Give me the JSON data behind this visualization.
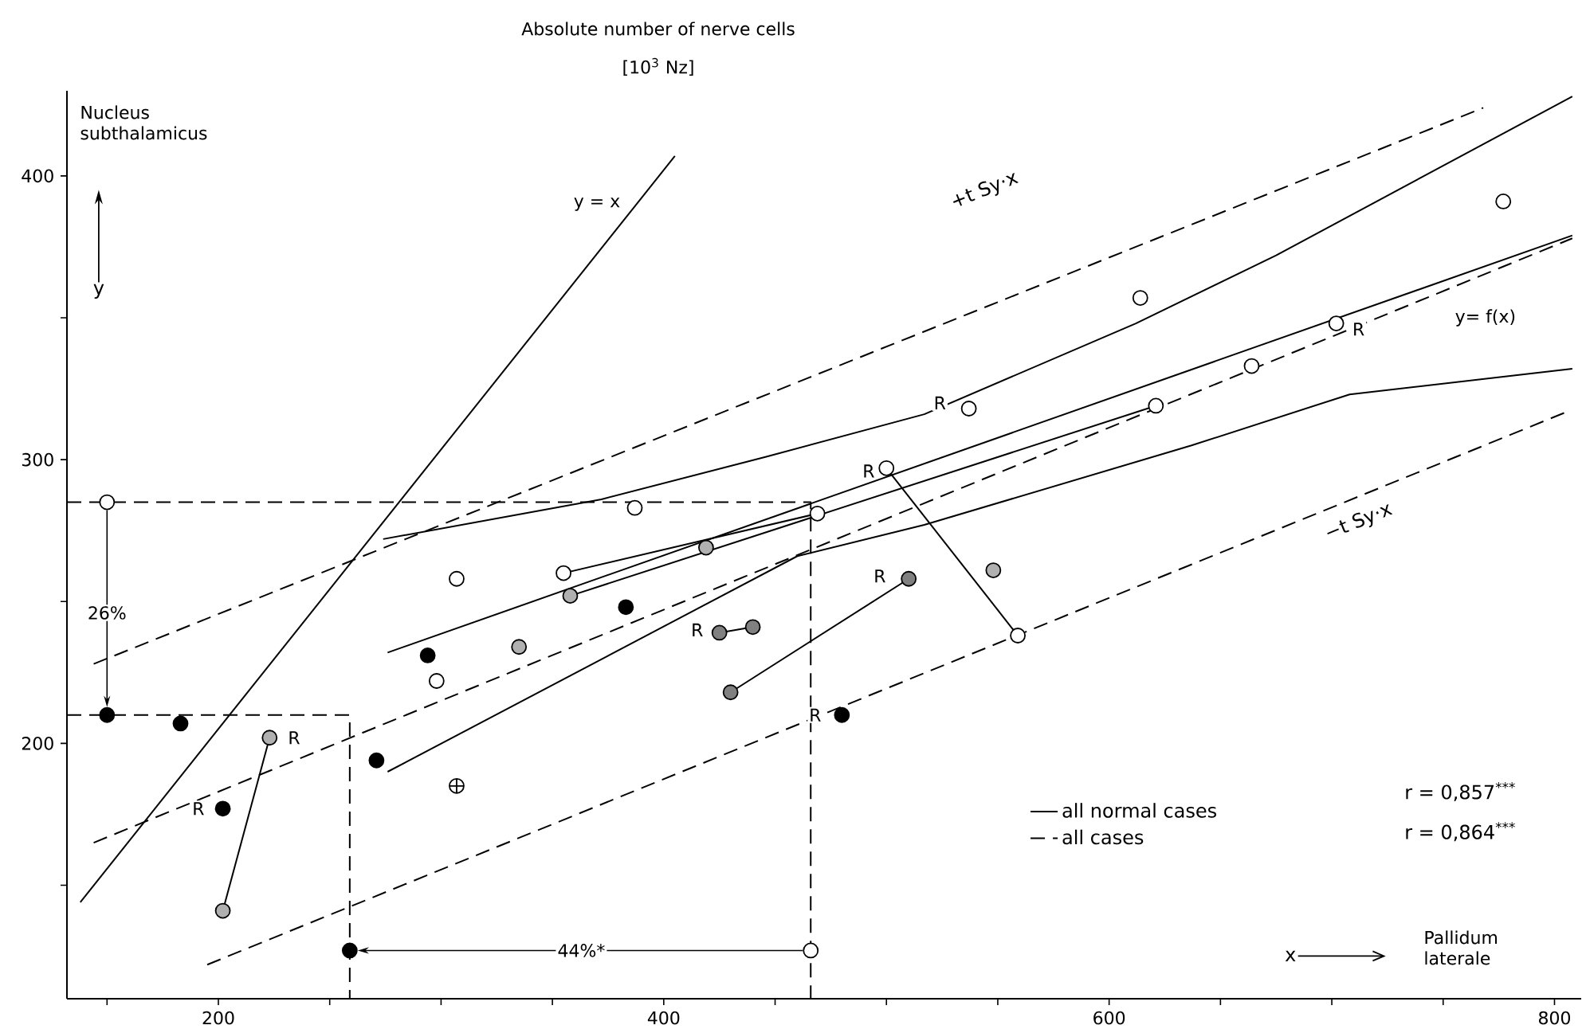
{
  "chart_data": {
    "type": "scatter",
    "title": "Absolute number of nerve cells",
    "subtitle": "[10$^{3}$ Nz]",
    "xlabel": "Pallidum laterale",
    "ylabel": "Nucleus subthalamicus",
    "xlim": [
      132,
      812
    ],
    "ylim": [
      110,
      430
    ],
    "xticks": [
      {
        "value": 150,
        "label": null
      },
      200,
      {
        "value": 250,
        "label": null
      },
      {
        "value": 300,
        "label": null
      },
      {
        "value": 350,
        "label": null
      },
      400,
      {
        "value": 450,
        "label": null
      },
      {
        "value": 500,
        "label": null
      },
      {
        "value": 550,
        "label": null
      },
      600,
      {
        "value": 650,
        "label": null
      },
      {
        "value": 700,
        "label": null
      },
      {
        "value": 750,
        "label": null
      },
      800
    ],
    "yticks": [
      {
        "value": 150,
        "label": null
      },
      200,
      {
        "value": 250,
        "label": null
      },
      300,
      {
        "value": 350,
        "label": null
      },
      400
    ],
    "legend": "bottom right",
    "series": [
      {
        "type": "line",
        "color": "#000000",
        "line_style": "solid",
        "x": [
          138,
          405
        ],
        "values": [
          144,
          407
        ]
      },
      {
        "type": "line",
        "name": "all normal cases",
        "color": "#000000",
        "line_style": "solid",
        "x": [
          276,
          808
        ],
        "values": [
          232,
          379
        ]
      },
      {
        "type": "line",
        "name": "all cases",
        "color": "#000000",
        "line_style": "dashed",
        "x": [
          144,
          808
        ],
        "values": [
          165,
          378
        ]
      },
      {
        "type": "line",
        "color": "#000000",
        "line_style": "solid",
        "x": [
          274,
          372,
          446,
          517,
          612,
          675,
          808
        ],
        "values": [
          272,
          286,
          301,
          316,
          348,
          372,
          428
        ]
      },
      {
        "type": "line",
        "color": "#000000",
        "line_style": "solid",
        "x": [
          276,
          460,
          517,
          637,
          708,
          808
        ],
        "values": [
          190,
          266,
          277,
          305,
          323,
          332
        ]
      },
      {
        "type": "line",
        "color": "#000000",
        "line_style": "dashed",
        "x": [
          144,
          768
        ],
        "values": [
          228,
          424
        ]
      },
      {
        "type": "line",
        "color": "#000000",
        "line_style": "dashed",
        "x": [
          195,
          806
        ],
        "values": [
          122,
          317
        ]
      },
      {
        "type": "line",
        "color": "#000000",
        "line_style": "solid",
        "x": [
          202,
          223
        ],
        "values": [
          141,
          202
        ]
      },
      {
        "type": "line",
        "color": "#000000",
        "line_style": "solid",
        "x": [
          500,
          559
        ],
        "values": [
          297,
          238
        ]
      },
      {
        "type": "line",
        "color": "#000000",
        "line_style": "solid",
        "x": [
          430,
          510
        ],
        "values": [
          218,
          258
        ]
      },
      {
        "type": "line",
        "color": "#000000",
        "line_style": "solid",
        "x": [
          425,
          440
        ],
        "values": [
          239,
          241
        ]
      },
      {
        "type": "line",
        "color": "#000000",
        "line_style": "solid",
        "x": [
          355,
          469
        ],
        "values": [
          260,
          281
        ]
      },
      {
        "type": "line",
        "color": "#000000",
        "line_style": "solid",
        "x": [
          358,
          621
        ],
        "values": [
          252,
          319
        ]
      },
      {
        "type": "line",
        "color": "#000000",
        "line_style": "dashed",
        "x": [
          132,
          466,
          466
        ],
        "values": [
          285,
          285,
          110
        ]
      },
      {
        "type": "line",
        "color": "#000000",
        "line_style": "dashed",
        "x": [
          132,
          259,
          259
        ],
        "values": [
          210,
          210,
          110
        ]
      },
      {
        "marker": "circle",
        "color": "#ffffff",
        "x": [
          298,
          355,
          469,
          559,
          500,
          614,
          307,
          387,
          537,
          621,
          664,
          702,
          777
        ],
        "values": [
          222,
          260,
          281,
          238,
          297,
          357,
          258,
          283,
          318,
          319,
          333,
          348,
          391
        ]
      },
      {
        "marker": "circle",
        "color": "#000000",
        "x": [
          183,
          202,
          271,
          294,
          383,
          480
        ],
        "values": [
          207,
          177,
          194,
          231,
          248,
          210
        ]
      },
      {
        "marker": "circle",
        "color": "#808080",
        "x": [
          425,
          440,
          430,
          510
        ],
        "values": [
          239,
          241,
          218,
          258
        ]
      },
      {
        "marker": "circle",
        "color": "#b0b0b0",
        "x": [
          223,
          202,
          335,
          358,
          548,
          419
        ],
        "values": [
          202,
          141,
          234,
          252,
          261,
          269
        ]
      },
      {
        "marker": "cross",
        "color": "#ffffff",
        "x": [
          307
        ],
        "values": [
          185
        ]
      },
      {
        "marker": "circle",
        "color": "#ffffff",
        "x": [
          150,
          466
        ],
        "values": [
          285,
          127
        ]
      },
      {
        "marker": "circle",
        "color": "#000000",
        "x": [
          150,
          259
        ],
        "values": [
          210,
          127
        ]
      }
    ],
    "annotations": [
      "r = 0,857$^{***}$",
      "r = 0,864$^{***}$",
      "y",
      "x",
      "+t Sy·x",
      "−t Sy·x",
      {
        "text": "y = x",
        "x": 370,
        "y": 390
      },
      {
        "text": "y= f(x)",
        "x": 769,
        "y": 350
      },
      {
        "text": "26%",
        "x": 150,
        "y": 246
      },
      {
        "text": "44%*",
        "x": 363,
        "y": 127
      },
      {
        "text": "R",
        "x": 234,
        "y": 202
      },
      {
        "text": "R",
        "x": 191,
        "y": 177
      },
      {
        "text": "R",
        "x": 415,
        "y": 240
      },
      {
        "text": "R",
        "x": 497,
        "y": 259
      },
      {
        "text": "R",
        "x": 468,
        "y": 210
      },
      {
        "text": "R",
        "x": 492,
        "y": 296
      },
      {
        "text": "R",
        "x": 524,
        "y": 320
      },
      {
        "text": "R",
        "x": 712,
        "y": 346
      }
    ]
  }
}
